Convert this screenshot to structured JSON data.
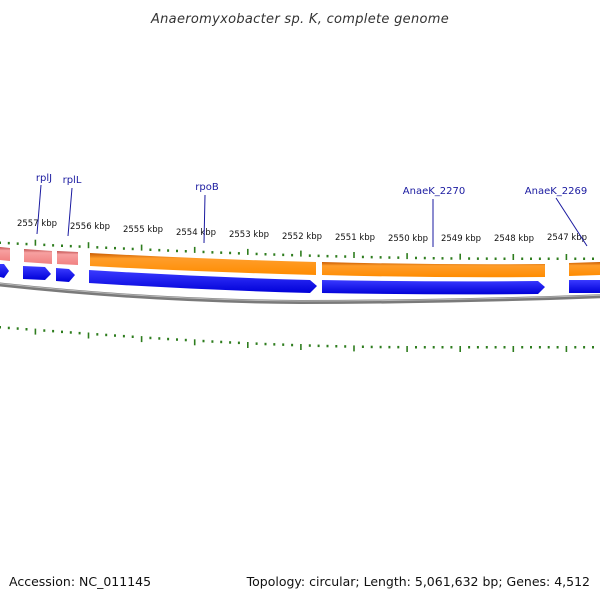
{
  "title": "Anaeromyxobacter sp. K, complete genome",
  "accession": "Accession: NC_011145",
  "topology": "Topology: circular; Length: 5,061,632 bp; Genes: 4,512",
  "colors": {
    "forward_feature": "#ff8c00",
    "forward_feature_alt": "#f08080",
    "reverse_cds": "#0000ff",
    "backbone": "#777777",
    "ticks": "#2e7d1e",
    "gene_label": "#1a1aa0"
  },
  "kbp_labels": [
    "2557 kbp",
    "2556 kbp",
    "2555 kbp",
    "2554 kbp",
    "2553 kbp",
    "2552 kbp",
    "2551 kbp",
    "2550 kbp",
    "2549 kbp",
    "2548 kbp",
    "2547 kbp"
  ],
  "gene_labels": [
    "rplJ",
    "rplL",
    "rpoB",
    "AnaeK_2270",
    "AnaeK_2269"
  ]
}
